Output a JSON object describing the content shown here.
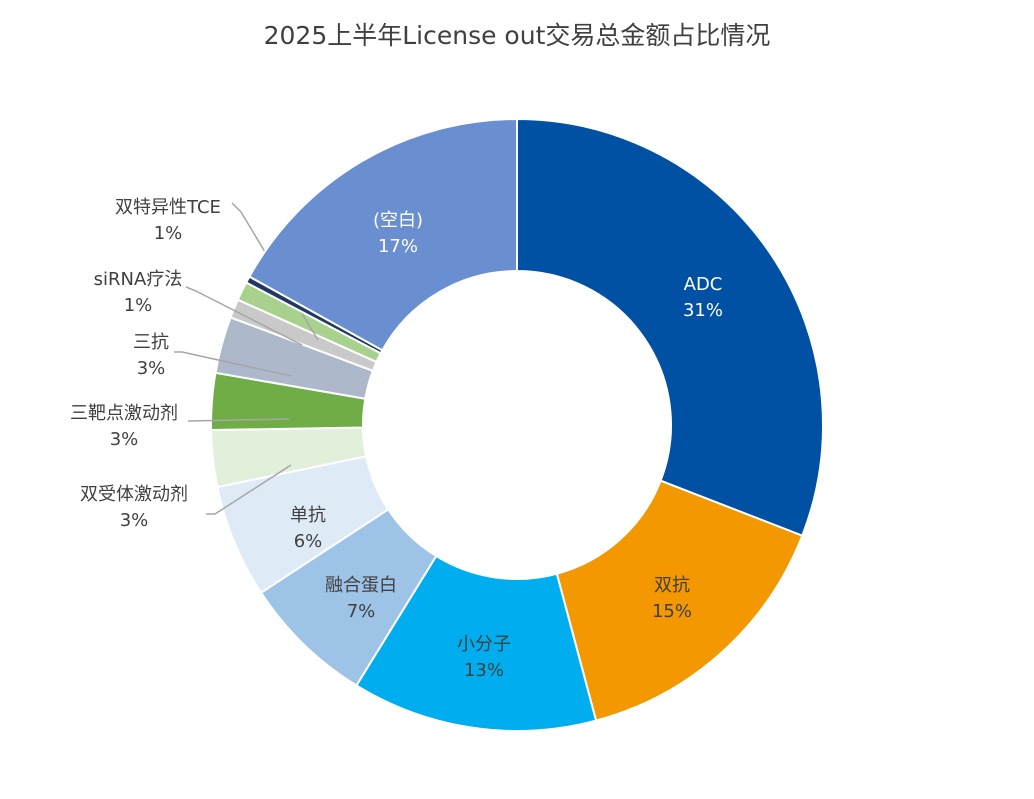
{
  "chart_data": {
    "type": "pie",
    "title": "2025上半年License out交易总金额占比情况",
    "slices": [
      {
        "label": "ADC",
        "value": 31,
        "percent_label": "31%",
        "color": "#0050A4"
      },
      {
        "label": "双抗",
        "value": 15,
        "percent_label": "15%",
        "color": "#F39800"
      },
      {
        "label": "小分子",
        "value": 13,
        "percent_label": "13%",
        "color": "#00AEEF"
      },
      {
        "label": "融合蛋白",
        "value": 7,
        "percent_label": "7%",
        "color": "#9DC3E6"
      },
      {
        "label": "单抗",
        "value": 6,
        "percent_label": "6%",
        "color": "#DEEBF7"
      },
      {
        "label": "双受体激动剂",
        "value": 3,
        "percent_label": "3%",
        "color": "#E2EFDA"
      },
      {
        "label": "三靶点激动剂",
        "value": 3,
        "percent_label": "3%",
        "color": "#70AD47"
      },
      {
        "label": "三抗",
        "value": 3,
        "percent_label": "3%",
        "color": "#ADB9CA"
      },
      {
        "label": "siRNA疗法",
        "value": 1,
        "percent_label": "1%",
        "color": "#C9C9C9"
      },
      {
        "label": "双特异性TCE",
        "value": 1,
        "percent_label": "1%",
        "color": "#A9D18E"
      },
      {
        "label": "",
        "value": 0.35,
        "percent_label": "",
        "color": "#203864"
      },
      {
        "label": "(空白)",
        "value": 17,
        "percent_label": "17%",
        "color": "#6A8FD0"
      }
    ],
    "legend": "none"
  }
}
